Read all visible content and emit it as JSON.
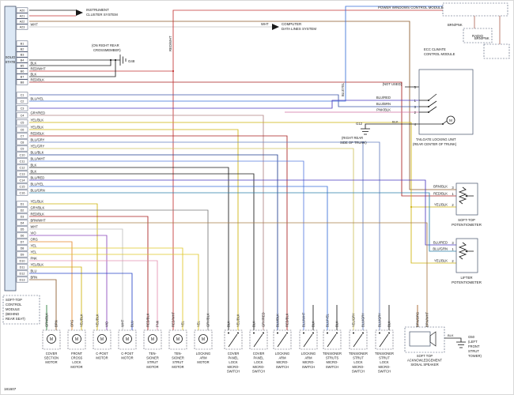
{
  "palette": {
    "BLK": "#1a1a1a",
    "WHT": "#bfbfbf",
    "RED_WHT": "#c23232",
    "RED_BLK": "#a81f1f",
    "BRN": "#8a5a2a",
    "BRN_WHT": "#a87c48",
    "BRN_ORG": "#a05a1e",
    "BRN_PNK": "#b06858",
    "BRN_BLK": "#6e4a1c",
    "BLU": "#2746c8",
    "BLU_YEL": "#3a6fd8",
    "BLU_RED": "#4a3ac0",
    "BLU_BRN": "#3c55a8",
    "BLU_GRN": "#2a7fa8",
    "BLU_BLK": "#1f3b8f",
    "BLU_WHT": "#5a7ce0",
    "BLU_GRY": "#6680c0",
    "GRY": "#9a9a9a",
    "GRY_RED": "#b08484",
    "GRY_BLK": "#787878",
    "YEL": "#e0c728",
    "YEL_BLK": "#cdb30a",
    "YEL_GRY": "#cfc260",
    "GRN_BLK": "#237a34",
    "VIO": "#8a46bb",
    "ORG": "#e5892b",
    "PNK": "#e591b1",
    "PNK_BLK": "#cf6fa0"
  },
  "pins": [
    {
      "id": "A20",
      "label": ""
    },
    {
      "id": "A21",
      "label": ""
    },
    {
      "id": "A22",
      "label": ""
    },
    {
      "id": "A23",
      "label": "WHT"
    },
    {
      "id": "B1",
      "label": ""
    },
    {
      "id": "B2",
      "label": ""
    },
    {
      "id": "B3",
      "label": ""
    },
    {
      "id": "B4",
      "label": ""
    },
    {
      "id": "B5",
      "label": "BLK"
    },
    {
      "id": "B6",
      "label": "RED/WHT"
    },
    {
      "id": "B7",
      "label": "BLK"
    },
    {
      "id": "B8",
      "label": "RED/BLK"
    },
    {
      "id": "C1",
      "label": ""
    },
    {
      "id": "C2",
      "label": "BLU/YEL"
    },
    {
      "id": "C3",
      "label": ""
    },
    {
      "id": "C4",
      "label": "GRY/RED"
    },
    {
      "id": "C5",
      "label": "YEL/BLK"
    },
    {
      "id": "C6",
      "label": "YEL/BLK"
    },
    {
      "id": "C7",
      "label": "RED/BLK"
    },
    {
      "id": "C8",
      "label": "BLU/GRY"
    },
    {
      "id": "C9",
      "label": "YEL/GRY"
    },
    {
      "id": "C10",
      "label": "BLU/BLK"
    },
    {
      "id": "C11",
      "label": "BLU/WHT"
    },
    {
      "id": "C12",
      "label": "BLK"
    },
    {
      "id": "C13",
      "label": "BLK"
    },
    {
      "id": "C14",
      "label": "BLU/RED"
    },
    {
      "id": "C15",
      "label": "BLU/YEL"
    },
    {
      "id": "C16",
      "label": "BLU/GRN"
    },
    {
      "id": "D1",
      "label": "YEL/BLK"
    },
    {
      "id": "D2",
      "label": "GRY/BLK"
    },
    {
      "id": "D3",
      "label": "RED/BLK"
    },
    {
      "id": "D4",
      "label": "BRN/WHT"
    },
    {
      "id": "D5",
      "label": "WHT"
    },
    {
      "id": "D6",
      "label": "VIO"
    },
    {
      "id": "D7",
      "label": "ORG"
    },
    {
      "id": "D8",
      "label": "YEL"
    },
    {
      "id": "D9",
      "label": "YEL"
    },
    {
      "id": "D10",
      "label": "PNK"
    },
    {
      "id": "D11",
      "label": "YEL/BLK"
    },
    {
      "id": "D12",
      "label": "BLU"
    },
    {
      "id": "D13",
      "label": "BRN"
    }
  ],
  "texts": {
    "solid": "SOLID",
    "state": "STATE",
    "footer1": "SOFT-TOP",
    "footer2": "CONTROL",
    "footer3": "MODULE",
    "footer4": "(BEHIND",
    "footer5": "REAR SEAT)",
    "part": "181607",
    "instrument1": "INSTRUMENT",
    "instrument2": "CLUSTER SYSTEM",
    "wht": "WHT",
    "computer1": "COMPUTER",
    "computer2": "DATA LINES SYSTEM",
    "red_wht": "RED/WHT",
    "blu_yel": "BLU/YEL",
    "crossmember1": "(ON RIGHT REAR",
    "crossmember2": "CROSSMEMBER)",
    "g48": "G48",
    "power_windows": "POWER WINDOWS CONTROL MODULE",
    "brn_pnk1": "BRN/PNK",
    "brn_pnk2": "BRN/PNK",
    "radio": "RADIO",
    "ecc1": "ECC CLIMATE",
    "ecc2": "CONTROL MODULE",
    "not_used": "(NOT USED)",
    "tg_blu_red": "BLU/RED",
    "tg_blu_brn": "BLU/BRN",
    "tg_pnk_blk": "PNK/BLK",
    "tg_blk": "BLK",
    "tg_p5": "5",
    "tg_p1": "1",
    "tg_p3": "3",
    "tg_p2": "2",
    "tg_p4": "4",
    "g12": "G12",
    "g12_loc1": "(RIGHT REAR",
    "g12_loc2": "SIDE OF TRUNK)",
    "tailgate1": "TAILGATE LOCKING UNIT",
    "tailgate2": "(REAR CENTER OF TRUNK)",
    "sp_w1": "BRN/BLK",
    "sp_p1": "3",
    "sp_w2": "RED/BLK",
    "sp_p2": "1",
    "sp_w3": "YEL/BLK",
    "sp_p3": "2",
    "softpot1": "SOFT-TOP",
    "softpot2": "POTENTIOMETER",
    "lp_w1": "BLU/RED",
    "lp_p1": "3",
    "lp_w2": "BLU/GRN",
    "lp_p2": "1",
    "lp_w3": "YEL/BLK",
    "lp_p3": "2",
    "lifterpot1": "LIFTER",
    "lifterpot2": "POTENTIOMETER",
    "g50": "G50",
    "g50_1": "(LEFT",
    "g50_2": "FRONT",
    "g50_3": "STRUT",
    "g50_4": "TOWER)",
    "g50_wire": "BLK",
    "motor_m": "M"
  },
  "bottom": {
    "components": [
      {
        "type": "motor",
        "lines": [
          "COVER",
          "SECTION",
          "MOTOR"
        ]
      },
      {
        "type": "motor",
        "lines": [
          "FRONT",
          "CROSS",
          "LOCK",
          "MOTOR"
        ]
      },
      {
        "type": "motor",
        "lines": [
          "C-POST",
          "MOTOR"
        ]
      },
      {
        "type": "motor",
        "lines": [
          "C-POST",
          "MOTOR"
        ]
      },
      {
        "type": "motor",
        "lines": [
          "TEN-",
          "SIONER",
          "STRUT",
          "MOTOR"
        ]
      },
      {
        "type": "motor",
        "lines": [
          "TEN-",
          "SIONER",
          "STRUT",
          "MOTOR"
        ]
      },
      {
        "type": "motor",
        "lines": [
          "LOCKING",
          "ARM",
          "MOTOR"
        ]
      },
      {
        "type": "switch",
        "lines": [
          "COVER",
          "PANEL",
          "LOCK",
          "MICRO-",
          "SWITCH"
        ]
      },
      {
        "type": "switch",
        "lines": [
          "COVER",
          "PANEL",
          "LOCK",
          "MICRO-",
          "SWITCH"
        ]
      },
      {
        "type": "switch",
        "lines": [
          "LOCKING",
          "ARM",
          "MICRO-",
          "SWITCH"
        ]
      },
      {
        "type": "switch",
        "lines": [
          "LOCKING",
          "ARM",
          "MICRO-",
          "SWITCH"
        ]
      },
      {
        "type": "switch",
        "lines": [
          "TENSIONER",
          "STRUTS",
          "MICRO-",
          "SWITCH"
        ]
      },
      {
        "type": "switch",
        "lines": [
          "TENSIONER",
          "STRUT",
          "LOCK",
          "MICRO-",
          "SWITCH"
        ]
      },
      {
        "type": "switch",
        "lines": [
          "TENSIONER",
          "STRUT",
          "LOCK",
          "MICRO-",
          "SWITCH"
        ]
      }
    ],
    "speaker": {
      "lines": [
        "SOFT TOP",
        "ACKNOWLEDGEMENT",
        "SIGNAL SPEAKER"
      ]
    },
    "wire_labels": [
      "GRN/BLK",
      "BRN",
      "ORG",
      "YEL/BLK",
      "YEL/BLK",
      "VIO",
      "WHT",
      "BLU",
      "RED/BLK",
      "PNK",
      "RED/WHT",
      "YEL",
      "YEL",
      "GRY/BLK",
      "BLK",
      "YEL/BLK",
      "BLK",
      "GRY/RED",
      "BLU/BLK",
      "RED/BLK",
      "BLU/WHT",
      "BLK",
      "BLU/YEL",
      "BLK",
      "YEL/GRY",
      "BLU/GRY",
      "BLU/GRY",
      "BLK",
      "BRN/ORG",
      "BRN/WHT"
    ]
  }
}
